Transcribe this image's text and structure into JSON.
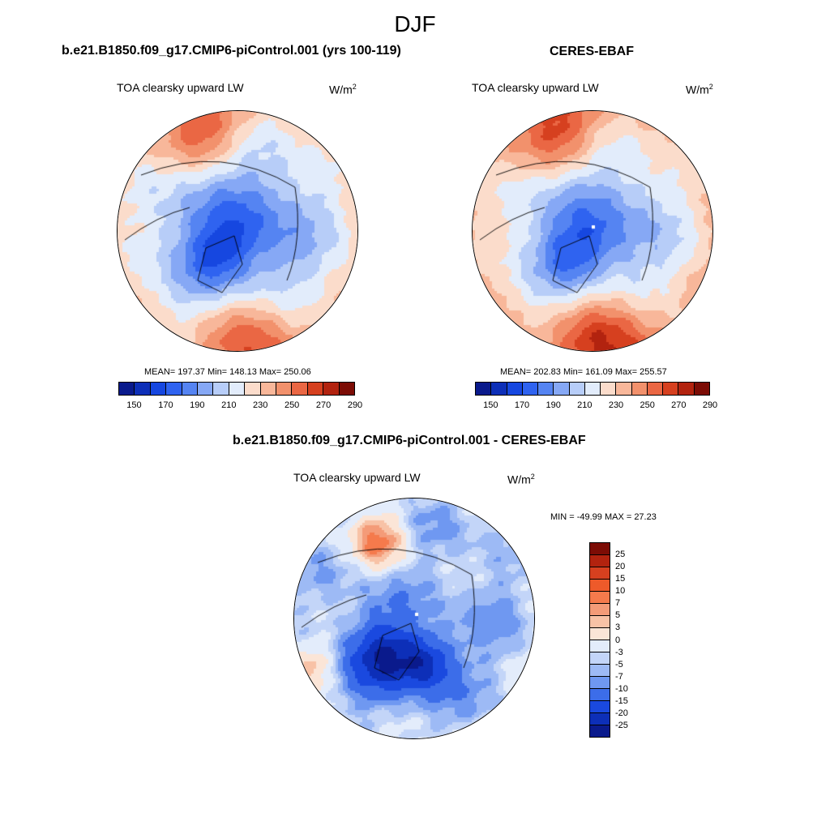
{
  "title": "DJF",
  "panels": [
    {
      "id": "model",
      "title": "b.e21.B1850.f09_g17.CMIP6-piControl.001 (yrs 100-119)",
      "variable": "TOA clearsky upward LW",
      "units_base": "W/m",
      "units_exp": "2",
      "stats": "MEAN= 197.37  Min= 148.13  Max= 250.06",
      "colorbar_labels": [
        "150",
        "170",
        "190",
        "210",
        "230",
        "250",
        "270",
        "290"
      ],
      "field": "model"
    },
    {
      "id": "obs",
      "title": "CERES-EBAF",
      "variable": "TOA clearsky upward LW",
      "units_base": "W/m",
      "units_exp": "2",
      "stats": "MEAN= 202.83  Min= 161.09  Max= 255.57",
      "colorbar_labels": [
        "150",
        "170",
        "190",
        "210",
        "230",
        "250",
        "270",
        "290"
      ],
      "field": "obs"
    },
    {
      "id": "diff",
      "title": "b.e21.B1850.f09_g17.CMIP6-piControl.001 - CERES-EBAF",
      "variable": "TOA clearsky upward LW",
      "units_base": "W/m",
      "units_exp": "2",
      "stats": "MIN = -49.99 MAX =  27.23",
      "colorbar_labels": [
        "25",
        "20",
        "15",
        "10",
        "7",
        "5",
        "3",
        "0",
        "-3",
        "-5",
        "-7",
        "-10",
        "-15",
        "-20",
        "-25"
      ],
      "field": "diff"
    }
  ],
  "colors": {
    "abs_scale": [
      "#0a1a8c",
      "#0d2fb8",
      "#1647e0",
      "#2f63f0",
      "#5584f2",
      "#86a8f5",
      "#b7cdf8",
      "#e2ecfb",
      "#fbdccb",
      "#f8b79a",
      "#f2916c",
      "#ea6744",
      "#d6401f",
      "#b2230f",
      "#7c0c05"
    ],
    "diff_scale": [
      "#7c0c05",
      "#b2230f",
      "#d6401f",
      "#ee5a2a",
      "#f57a4c",
      "#f49b78",
      "#f8c2a6",
      "#fbe5d7",
      "#e3ecfb",
      "#c3d5f8",
      "#9dbaf5",
      "#6f98f1",
      "#3c6de9",
      "#1a49df",
      "#0d2fb8",
      "#0a1a8c"
    ],
    "coastline": "#000000",
    "missing": "#ffffff"
  }
}
